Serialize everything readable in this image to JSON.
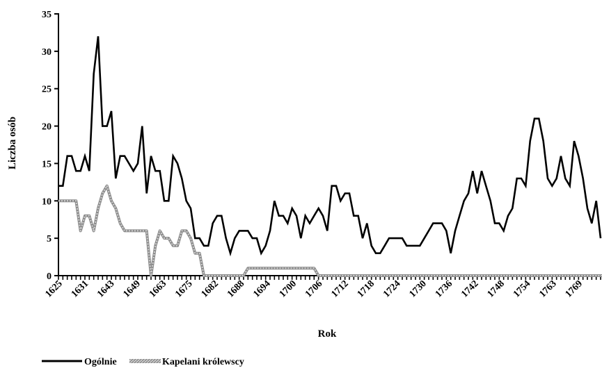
{
  "chart_data": {
    "type": "line",
    "xlabel": "Rok",
    "ylabel": "Liczba osób",
    "ylim": [
      0,
      35
    ],
    "yticks": [
      0,
      5,
      10,
      15,
      20,
      25,
      30,
      35
    ],
    "x_tick_labels": [
      "1625",
      "1631",
      "1643",
      "1649",
      "1663",
      "1675",
      "1682",
      "1688",
      "1694",
      "1700",
      "1706",
      "1712",
      "1718",
      "1724",
      "1730",
      "1736",
      "1742",
      "1748",
      "1754",
      "1763",
      "1769"
    ],
    "grid": false,
    "legend_position": "bottom-left",
    "series": [
      {
        "name": "Ogólnie",
        "color": "#000000",
        "style": "solid",
        "values": [
          12,
          12,
          16,
          16,
          14,
          14,
          16,
          14,
          27,
          32,
          20,
          20,
          22,
          13,
          16,
          16,
          15,
          14,
          15,
          20,
          11,
          16,
          14,
          14,
          10,
          10,
          16,
          15,
          13,
          10,
          9,
          5,
          5,
          4,
          4,
          7,
          8,
          8,
          5,
          3,
          5,
          6,
          6,
          6,
          5,
          5,
          3,
          4,
          6,
          10,
          8,
          8,
          7,
          9,
          8,
          5,
          8,
          7,
          8,
          9,
          8,
          6,
          12,
          12,
          10,
          11,
          11,
          8,
          8,
          5,
          7,
          4,
          3,
          3,
          4,
          5,
          5,
          5,
          5,
          4,
          4,
          4,
          4,
          5,
          6,
          7,
          7,
          7,
          6,
          3,
          6,
          8,
          10,
          11,
          14,
          11,
          14,
          12,
          10,
          7,
          7,
          6,
          8,
          9,
          13,
          13,
          12,
          18,
          21,
          21,
          18,
          13,
          12,
          13,
          16,
          13,
          12,
          18,
          16,
          13,
          9,
          7,
          10,
          5
        ]
      },
      {
        "name": "Kapelani królewscy",
        "color": "#a6a6a6",
        "style": "hatched",
        "values": [
          10,
          10,
          10,
          10,
          10,
          6,
          8,
          8,
          6,
          9,
          11,
          12,
          10,
          9,
          7,
          6,
          6,
          6,
          6,
          6,
          6,
          0,
          4,
          6,
          5,
          5,
          4,
          4,
          6,
          6,
          5,
          3,
          3,
          0,
          0,
          0,
          0,
          0,
          0,
          0,
          0,
          0,
          0,
          1,
          1,
          1,
          1,
          1,
          1,
          1,
          1,
          1,
          1,
          1,
          1,
          1,
          1,
          1,
          1,
          0,
          0,
          0,
          0,
          0,
          0,
          0,
          0,
          0,
          0,
          0,
          0,
          0,
          0,
          0,
          0,
          0,
          0,
          0,
          0,
          0,
          0,
          0,
          0,
          0,
          0,
          0,
          0,
          0,
          0,
          0,
          0,
          0,
          0,
          0,
          0,
          0,
          0,
          0,
          0,
          0,
          0,
          0,
          0,
          0,
          0,
          0,
          0,
          0,
          0,
          0,
          0,
          0,
          0,
          0,
          0,
          0,
          0,
          0,
          0,
          0,
          0,
          0,
          0,
          0,
          0
        ]
      }
    ]
  }
}
